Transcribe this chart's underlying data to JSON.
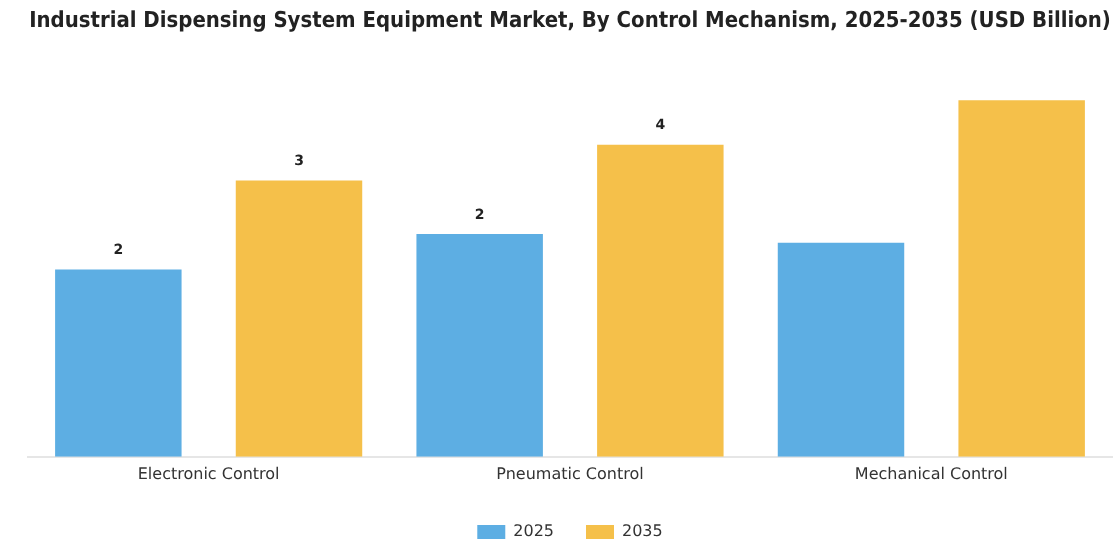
{
  "chart_data": {
    "type": "bar",
    "title": "Industrial Dispensing System Equipment Market, By Control Mechanism, 2025-2035 (USD Billion)",
    "categories": [
      "Electronic Control",
      "Pneumatic Control",
      "Mechanical Control"
    ],
    "legend": "bottom",
    "grid": false,
    "series": [
      {
        "name": "2025",
        "color": "#5daee3",
        "values": [
          2.1,
          2.5,
          2.4
        ],
        "value_labels": [
          "2",
          "2",
          null
        ]
      },
      {
        "name": "2035",
        "color": "#f5c04a",
        "values": [
          3.1,
          3.5,
          4.0
        ],
        "value_labels": [
          "3",
          "4",
          null
        ]
      }
    ]
  }
}
